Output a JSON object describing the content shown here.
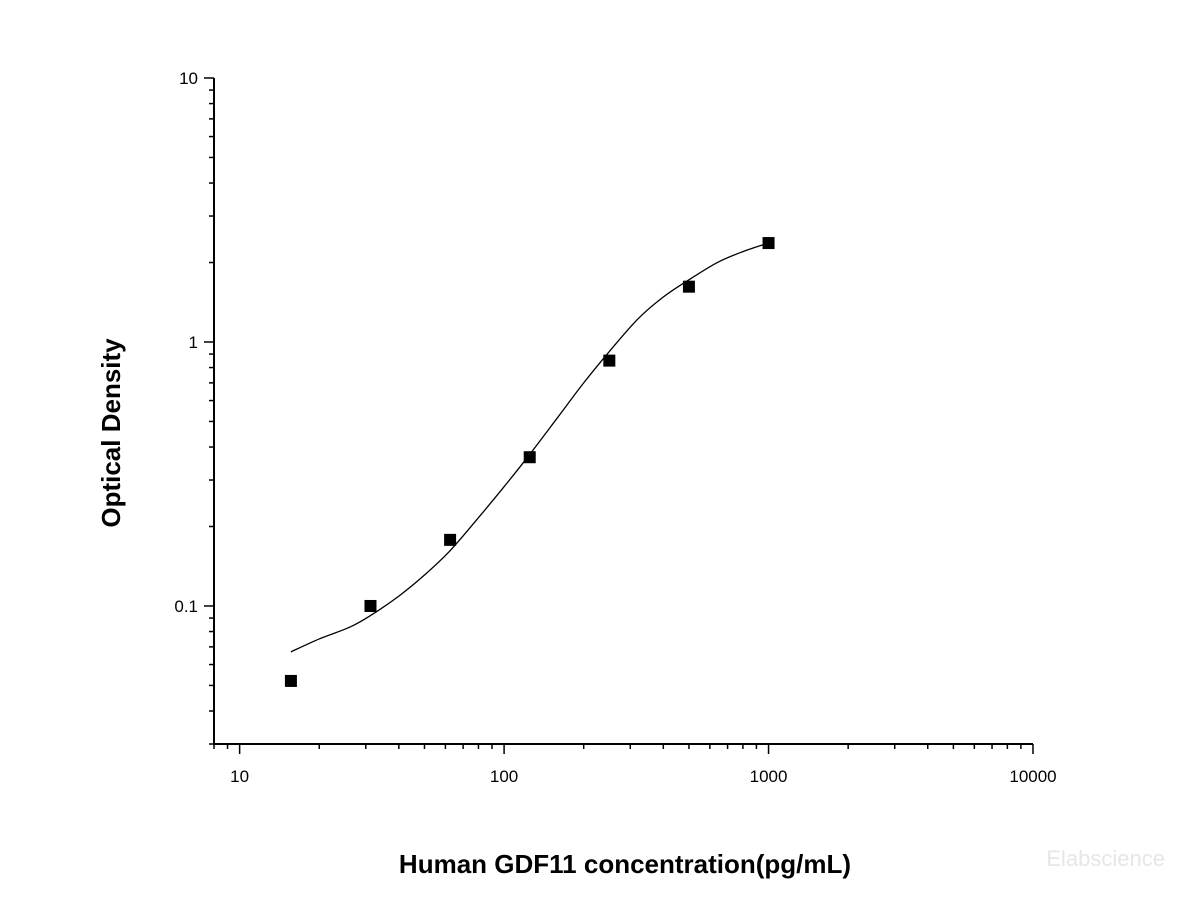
{
  "chart_data": {
    "type": "scatter",
    "xlabel": "Human GDF11 concentration(pg/mL)",
    "ylabel": "Optical Density",
    "xscale": "log",
    "yscale": "log",
    "xlim": [
      8,
      10000
    ],
    "ylim": [
      0.03,
      10
    ],
    "x_ticks": [
      10,
      100,
      1000,
      10000
    ],
    "x_tick_labels": [
      "10",
      "100",
      "1000",
      "10000"
    ],
    "y_ticks": [
      0.1,
      1,
      10
    ],
    "y_tick_labels": [
      "0.1",
      "1",
      "10"
    ],
    "grid": false,
    "legend": "none",
    "series": [
      {
        "kind": "points",
        "marker": "square",
        "x": [
          15.63,
          31.25,
          62.5,
          125,
          250,
          500,
          1000
        ],
        "y": [
          0.052,
          0.1,
          0.178,
          0.366,
          0.85,
          1.62,
          2.37
        ]
      },
      {
        "kind": "fitted-curve",
        "x": [
          15.63,
          20,
          26,
          31.25,
          40,
          50,
          62.5,
          80,
          100,
          125,
          160,
          200,
          250,
          320,
          400,
          500,
          640,
          800,
          1000
        ],
        "y": [
          0.067,
          0.075,
          0.083,
          0.092,
          0.109,
          0.131,
          0.162,
          0.216,
          0.283,
          0.375,
          0.52,
          0.7,
          0.92,
          1.22,
          1.48,
          1.72,
          2.0,
          2.2,
          2.37
        ]
      }
    ],
    "watermark": "Elabscience"
  }
}
